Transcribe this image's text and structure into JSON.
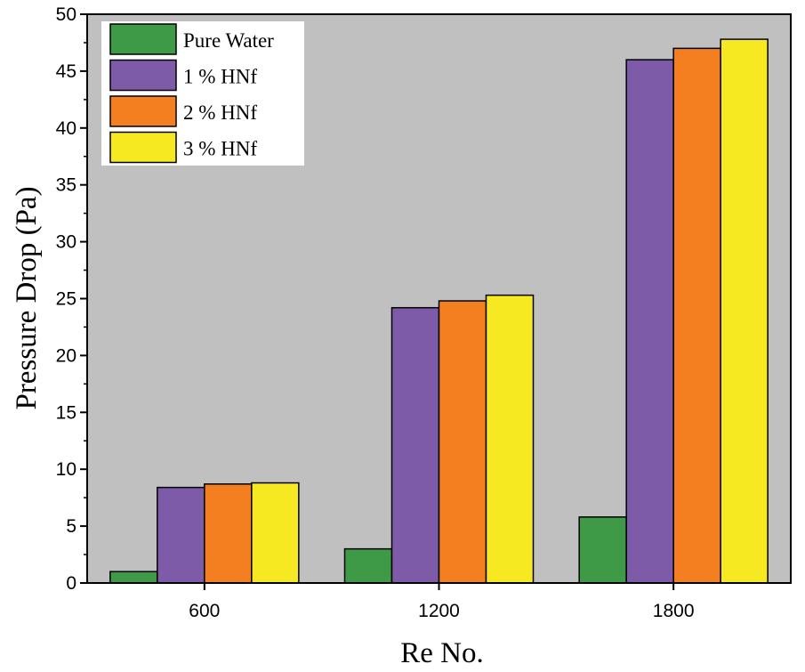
{
  "chart_data": {
    "type": "bar",
    "title": "",
    "xlabel": "Re No.",
    "ylabel": "Pressure Drop (Pa)",
    "ylim": [
      0,
      50
    ],
    "yticks": [
      0,
      5,
      10,
      15,
      20,
      25,
      30,
      35,
      40,
      45,
      50
    ],
    "grid": false,
    "legend_position": "top-left",
    "background_color": "#c0c0c0",
    "categories": [
      "600",
      "1200",
      "1800"
    ],
    "series": [
      {
        "name": "Pure Water",
        "color": "#3f9a48",
        "values": [
          1.0,
          3.0,
          5.8
        ]
      },
      {
        "name": "1 % HNf",
        "color": "#7e5ba9",
        "values": [
          8.4,
          24.2,
          46.0
        ]
      },
      {
        "name": "2 % HNf",
        "color": "#f47f20",
        "values": [
          8.7,
          24.8,
          47.0
        ]
      },
      {
        "name": "3 % HNf",
        "color": "#f7e921",
        "values": [
          8.8,
          25.3,
          47.8
        ]
      }
    ]
  }
}
